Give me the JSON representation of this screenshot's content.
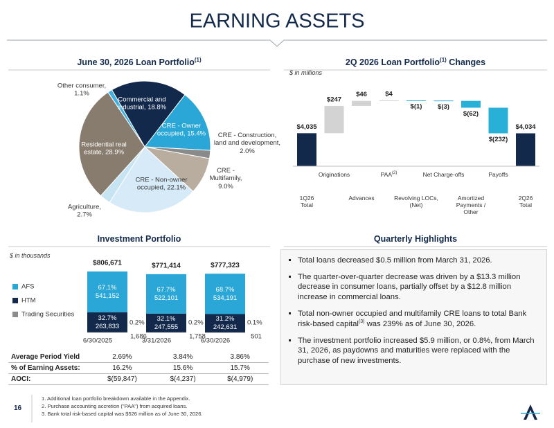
{
  "title": "EARNING ASSETS",
  "chart_data": [
    {
      "type": "pie",
      "title": "June 30, 2026 Loan Portfolio",
      "title_sup": "(1)",
      "categories": [
        "Commercial and industrial,",
        "CRE - Owner occupied,",
        "CRE - Construction, land and development,",
        "CRE - Multifamily,",
        "CRE - Non-owner occupied,",
        "Agriculture,",
        "Residential real estate,",
        "Other consumer,"
      ],
      "values": [
        18.8,
        15.4,
        2.0,
        9.0,
        22.1,
        2.7,
        28.9,
        1.1
      ],
      "value_labels": [
        "18.8%",
        "15.4%",
        "2.0%",
        "9.0%",
        "22.1%",
        "2.7%",
        "28.9%",
        "1.1%"
      ],
      "colors": [
        "#13294b",
        "#2aa7d6",
        "#8a8a8a",
        "#b8ad9f",
        "#d7eaf8",
        "#c6e4f1",
        "#877c6d",
        "#3fb0e0"
      ]
    },
    {
      "type": "waterfall",
      "title": "2Q 2026 Loan Portfolio",
      "title_sup": "(1)",
      "title_end": "Changes",
      "subtitle": "$ in millions",
      "categories": [
        "1Q26 Total",
        "Originations",
        "Advances",
        "PAA",
        "Revolving LOCs, (Net)",
        "Net Charge-offs",
        "Amortized Payments / Other",
        "Payoffs",
        "2Q26 Total"
      ],
      "category_sups": [
        null,
        null,
        null,
        "(2)",
        null,
        null,
        null,
        null,
        null
      ],
      "values": [
        4035,
        247,
        46,
        4,
        -1,
        -3,
        -62,
        -232,
        4034
      ],
      "value_labels": [
        "$4,035",
        "$247",
        "$46",
        "$4",
        "$(1)",
        "$(3)",
        "$(62)",
        "$(232)",
        "$4,034"
      ],
      "colors": {
        "total": "#13294b",
        "increase": "#d3d3d3",
        "decrease": "#29b0d9"
      }
    },
    {
      "type": "stacked_bar",
      "title": "Investment Portfolio",
      "subtitle": "$ in thousands",
      "categories": [
        "6/30/2025",
        "3/31/2026",
        "6/30/2026"
      ],
      "series": [
        {
          "name": "AFS",
          "color": "#2aa7d6",
          "values": [
            541152,
            522101,
            534191
          ],
          "value_labels": [
            "541,152",
            "522,101",
            "534,191"
          ],
          "percent_labels": [
            "67.1%",
            "67.7%",
            "68.7%"
          ]
        },
        {
          "name": "HTM",
          "color": "#13294b",
          "values": [
            263833,
            247555,
            242631
          ],
          "value_labels": [
            "263,833",
            "247,555",
            "242,631"
          ],
          "percent_labels": [
            "32.7%",
            "32.1%",
            "31.2%"
          ]
        },
        {
          "name": "Trading Securities",
          "color": "#8c8c8c",
          "values": [
            1686,
            1758,
            501
          ],
          "value_labels": [
            "1,686",
            "1,758",
            "501"
          ],
          "percent_labels": [
            "0.2%",
            "0.2%",
            "0.1%"
          ]
        }
      ],
      "totals": [
        806671,
        771414,
        777323
      ],
      "total_labels": [
        "$806,671",
        "$771,414",
        "$777,323"
      ]
    }
  ],
  "table": {
    "rows": [
      [
        "Average Period Yield",
        "2.69%",
        "3.84%",
        "3.86%"
      ],
      [
        "% of Earning Assets:",
        "16.2%",
        "15.6%",
        "15.7%"
      ],
      [
        "AOCI:",
        "$(59,847)",
        "$(4,237)",
        "$(4,979)"
      ]
    ]
  },
  "highlights": {
    "title": "Quarterly Highlights",
    "bullets": [
      "Total loans decreased $0.5 million from March 31, 2026.",
      "The quarter-over-quarter decrease was driven by a $13.3 million decrease in consumer loans, partially offset by a $12.8 million increase in commercial loans.",
      [
        "Total non-owner occupied and multifamily CRE loans to total Bank risk-based capital",
        "(3)",
        " was 239% as of June 30, 2026."
      ],
      "The investment portfolio increased $5.9 million, or 0.8%, from March 31, 2026, as paydowns and maturities were replaced with the purchase of new investments."
    ]
  },
  "footnotes": [
    "1. Additional loan portfolio breakdown available in the Appendix.",
    "2. Purchase accounting accretion (\"PAA\") from acquired loans.",
    "3. Bank total risk-based capital was $526 million as of June 30, 2026."
  ],
  "page_number": "16"
}
